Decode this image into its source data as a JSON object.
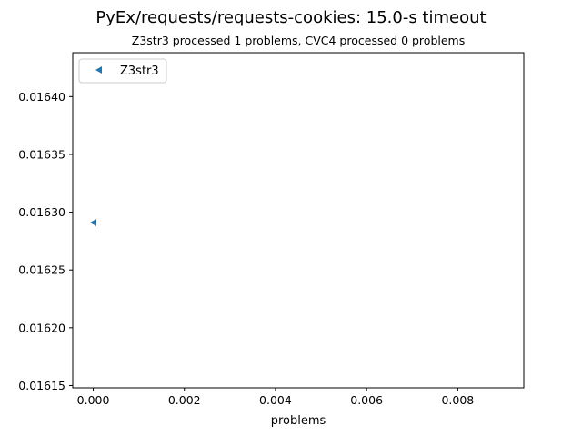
{
  "chart_data": {
    "type": "scatter",
    "title": "PyEx/requests/requests-cookies: 15.0-s timeout",
    "subtitle": "Z3str3 processed 1 problems, CVC4 processed 0 problems",
    "xlabel": "problems",
    "ylabel": "",
    "xlim": [
      -0.00045,
      0.00945
    ],
    "ylim": [
      0.016148,
      0.016438
    ],
    "x_ticks": [
      0.0,
      0.002,
      0.004,
      0.006,
      0.008
    ],
    "x_tick_labels": [
      "0.000",
      "0.002",
      "0.004",
      "0.006",
      "0.008"
    ],
    "y_ticks": [
      0.01615,
      0.0162,
      0.01625,
      0.0163,
      0.01635,
      0.0164
    ],
    "y_tick_labels": [
      "0.01615",
      "0.01620",
      "0.01625",
      "0.01630",
      "0.01635",
      "0.01640"
    ],
    "grid": false,
    "legend": {
      "position": "top-left",
      "entries": [
        {
          "label": "Z3str3",
          "color": "#1f77b4",
          "marker": "triangle-left"
        }
      ]
    },
    "series": [
      {
        "name": "Z3str3",
        "color": "#1f77b4",
        "marker": "triangle-left",
        "points": [
          {
            "x": 0.0,
            "y": 0.016291
          }
        ]
      }
    ]
  }
}
